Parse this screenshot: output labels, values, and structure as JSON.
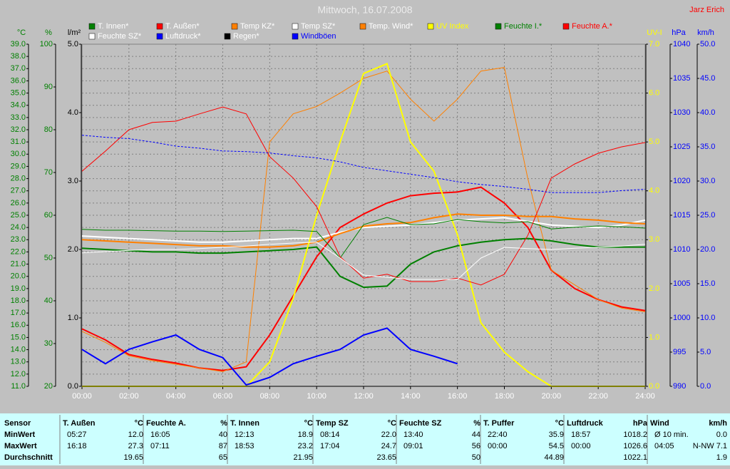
{
  "header": {
    "author": "Jarz Erich"
  },
  "chart_data": {
    "type": "line",
    "title": "Mittwoch, 16.07.2008",
    "x": [
      0,
      1,
      2,
      3,
      4,
      5,
      6,
      7,
      8,
      9,
      10,
      11,
      12,
      13,
      14,
      15,
      16,
      17,
      18,
      19,
      20,
      21,
      22,
      23,
      24
    ],
    "xlim": [
      0,
      24
    ],
    "xticks": [
      {
        "value": 0,
        "label": "00:00"
      },
      {
        "value": 2,
        "label": "02:00"
      },
      {
        "value": 4,
        "label": "04:00"
      },
      {
        "value": 6,
        "label": "06:00"
      },
      {
        "value": 8,
        "label": "08:00"
      },
      {
        "value": 10,
        "label": "10:00"
      },
      {
        "value": 12,
        "label": "12:00"
      },
      {
        "value": 14,
        "label": "14:00"
      },
      {
        "value": 16,
        "label": "16:00"
      },
      {
        "value": 18,
        "label": "18:00"
      },
      {
        "value": 20,
        "label": "20:00"
      },
      {
        "value": 22,
        "label": "22:00"
      },
      {
        "value": 24,
        "label": "24:00"
      }
    ],
    "grid": true,
    "ylabel": "°C",
    "ycolor": "#008000",
    "ylim": [
      11,
      39
    ],
    "yticks": [
      {
        "value": 11,
        "label": "11.0"
      },
      {
        "value": 12,
        "label": "12.0"
      },
      {
        "value": 13,
        "label": "13.0"
      },
      {
        "value": 14,
        "label": "14.0"
      },
      {
        "value": 15,
        "label": "15.0"
      },
      {
        "value": 16,
        "label": "16.0"
      },
      {
        "value": 17,
        "label": "17.0"
      },
      {
        "value": 18,
        "label": "18.0"
      },
      {
        "value": 19,
        "label": "19.0"
      },
      {
        "value": 20,
        "label": "20.0"
      },
      {
        "value": 21,
        "label": "21.0"
      },
      {
        "value": 22,
        "label": "22.0"
      },
      {
        "value": 23,
        "label": "23.0"
      },
      {
        "value": 24,
        "label": "24.0"
      },
      {
        "value": 25,
        "label": "25.0"
      },
      {
        "value": 26,
        "label": "26.0"
      },
      {
        "value": 27,
        "label": "27.0"
      },
      {
        "value": 28,
        "label": "28.0"
      },
      {
        "value": 29,
        "label": "29.0"
      },
      {
        "value": 30,
        "label": "30.0"
      },
      {
        "value": 31,
        "label": "31.0"
      },
      {
        "value": 32,
        "label": "32.0"
      },
      {
        "value": 33,
        "label": "33.0"
      },
      {
        "value": 34,
        "label": "34.0"
      },
      {
        "value": 35,
        "label": "35.0"
      },
      {
        "value": 36,
        "label": "36.0"
      },
      {
        "value": 37,
        "label": "37.0"
      },
      {
        "value": 38,
        "label": "38.0"
      },
      {
        "value": 39,
        "label": "39.0"
      }
    ],
    "y2label": "%",
    "y2color": "#008000",
    "y2lim": [
      20,
      100
    ],
    "y2ticks": [
      20,
      30,
      40,
      50,
      60,
      70,
      80,
      90,
      100
    ],
    "y3label": "l/m²",
    "y3color": "#000000",
    "y3lim": [
      0,
      5
    ],
    "y3ticks": [
      {
        "value": 0,
        "label": "0.0"
      },
      {
        "value": 1,
        "label": "1.0"
      },
      {
        "value": 2,
        "label": "2.0"
      },
      {
        "value": 3,
        "label": "3.0"
      },
      {
        "value": 4,
        "label": "4.0"
      },
      {
        "value": 5,
        "label": "5.0"
      }
    ],
    "y4label": "UV-I",
    "y4color": "#ffff00",
    "y4lim": [
      0,
      7
    ],
    "y4ticks": [
      {
        "value": 0,
        "label": "0.0"
      },
      {
        "value": 1,
        "label": "1.0"
      },
      {
        "value": 2,
        "label": "2.0"
      },
      {
        "value": 3,
        "label": "3.0"
      },
      {
        "value": 4,
        "label": "4.0"
      },
      {
        "value": 5,
        "label": "5.0"
      },
      {
        "value": 6,
        "label": "6.0"
      },
      {
        "value": 7,
        "label": "7.0"
      }
    ],
    "y5label": "hPa",
    "y5color": "#0000ff",
    "y5lim": [
      990,
      1040
    ],
    "y5ticks": [
      990,
      995,
      1000,
      1005,
      1010,
      1015,
      1020,
      1025,
      1030,
      1035,
      1040
    ],
    "y6label": "km/h",
    "y6color": "#0000ff",
    "y6lim": [
      0,
      50
    ],
    "y6ticks": [
      {
        "value": 0,
        "label": "0.0"
      },
      {
        "value": 5,
        "label": "5.0"
      },
      {
        "value": 10,
        "label": "10.0"
      },
      {
        "value": 15,
        "label": "15.0"
      },
      {
        "value": 20,
        "label": "20.0"
      },
      {
        "value": 25,
        "label": "25.0"
      },
      {
        "value": 30,
        "label": "30.0"
      },
      {
        "value": 35,
        "label": "35.0"
      },
      {
        "value": 40,
        "label": "40.0"
      },
      {
        "value": 45,
        "label": "45.0"
      },
      {
        "value": 50,
        "label": "50.0"
      }
    ],
    "series": [
      {
        "name": "T. Innen*",
        "color": "#008000",
        "label_color": "#ffffff",
        "axis": "y",
        "line_width": 2,
        "values": [
          22.3,
          22.2,
          22.1,
          22.0,
          22.0,
          21.9,
          21.9,
          22.0,
          22.1,
          22.2,
          22.4,
          20.0,
          19.1,
          19.2,
          21.0,
          22.0,
          22.5,
          22.8,
          23.0,
          23.1,
          22.9,
          22.6,
          22.4,
          22.4,
          22.4
        ]
      },
      {
        "name": "T. Außen*",
        "color": "#ff0000",
        "label_color": "#ffffff",
        "axis": "y",
        "line_width": 2,
        "values": [
          15.7,
          14.8,
          13.6,
          13.2,
          12.9,
          12.5,
          12.3,
          12.6,
          15.2,
          18.4,
          21.6,
          24.0,
          25.1,
          26.0,
          26.6,
          26.8,
          26.9,
          27.3,
          26.0,
          24.0,
          20.5,
          19.0,
          18.1,
          17.5,
          17.2
        ]
      },
      {
        "name": "Temp KZ*",
        "color": "#ff8000",
        "label_color": "#ffffff",
        "axis": "y",
        "line_width": 1,
        "values": [
          15.5,
          14.6,
          13.5,
          13.1,
          12.8,
          12.5,
          12.2,
          13.0,
          31.0,
          33.3,
          33.9,
          35.0,
          36.2,
          36.8,
          34.5,
          32.7,
          34.5,
          36.8,
          37.1,
          28.0,
          20.5,
          19.3,
          18.1,
          17.4,
          17.1
        ]
      },
      {
        "name": "Temp SZ*",
        "color": "#ffffff",
        "label_color": "#ffffff",
        "axis": "y",
        "line_width": 2,
        "values": [
          23.3,
          23.2,
          23.1,
          23.0,
          22.9,
          22.8,
          22.8,
          22.9,
          23.0,
          23.1,
          23.1,
          23.6,
          24.0,
          24.1,
          24.2,
          24.4,
          24.6,
          24.7,
          24.8,
          24.5,
          24.2,
          24.1,
          24.0,
          24.2,
          24.6
        ]
      },
      {
        "name": "Temp. Wind*",
        "color": "#ff8000",
        "label_color": "#ffffff",
        "axis": "y",
        "line_width": 2,
        "values": [
          23.0,
          22.9,
          22.8,
          22.7,
          22.6,
          22.5,
          22.5,
          22.4,
          22.4,
          22.5,
          22.8,
          23.5,
          24.1,
          24.3,
          24.4,
          24.8,
          25.1,
          25.0,
          25.0,
          24.9,
          24.9,
          24.7,
          24.6,
          24.4,
          24.3
        ]
      },
      {
        "name": "UV Index",
        "color": "#ffff00",
        "label_color": "#ffff00",
        "axis": "y4",
        "line_width": 2,
        "values": [
          0,
          0,
          0,
          0,
          0,
          0,
          0,
          0,
          0.5,
          1.8,
          3.5,
          5.0,
          6.4,
          6.6,
          5.0,
          4.4,
          3.1,
          1.3,
          0.7,
          0.3,
          0,
          0,
          0,
          0,
          0
        ]
      },
      {
        "name": "Feuchte I.*",
        "color": "#008000",
        "label_color": "#008000",
        "axis": "y2",
        "line_width": 1,
        "values": [
          56.7,
          56.5,
          56.5,
          56.4,
          56.3,
          56.3,
          56.2,
          56.3,
          56.4,
          56.5,
          56.2,
          50.0,
          57.8,
          59.5,
          57.8,
          58.0,
          59.0,
          58.5,
          58.2,
          58.5,
          56.8,
          57.2,
          57.5,
          57.3,
          57.0
        ]
      },
      {
        "name": "Feuchte A.*",
        "color": "#ff0000",
        "label_color": "#ff0000",
        "axis": "y2",
        "line_width": 1,
        "values": [
          70.3,
          75.0,
          80.0,
          81.7,
          82.0,
          83.7,
          85.3,
          83.7,
          73.7,
          68.7,
          62.0,
          50.3,
          45.3,
          46.2,
          44.5,
          44.5,
          45.3,
          43.7,
          46.2,
          55.3,
          68.7,
          72.0,
          74.5,
          76.0,
          77.0
        ]
      },
      {
        "name": "Feuchte SZ*",
        "color": "#ffffff",
        "label_color": "#ffffff",
        "axis": "y2",
        "line_width": 1,
        "values": [
          51.2,
          51.5,
          51.8,
          52.0,
          52.0,
          52.2,
          52.5,
          52.8,
          53.2,
          53.5,
          53.7,
          50.0,
          46.0,
          45.5,
          45.0,
          45.0,
          45.0,
          50.0,
          52.5,
          52.2,
          52.0,
          52.3,
          52.5,
          52.8,
          53.2
        ]
      },
      {
        "name": "Luftdruck*",
        "color": "#0000ff",
        "label_color": "#ffffff",
        "axis": "y5",
        "line_width": 1,
        "dashed": true,
        "values": [
          1026.7,
          1026.4,
          1026.2,
          1025.7,
          1025.1,
          1024.8,
          1024.4,
          1024.3,
          1024.1,
          1023.7,
          1023.4,
          1022.8,
          1022.0,
          1021.5,
          1021.0,
          1020.5,
          1019.9,
          1019.5,
          1019.2,
          1018.8,
          1018.3,
          1018.3,
          1018.3,
          1018.6,
          1018.8
        ]
      },
      {
        "name": "Regen*",
        "color": "#000000",
        "label_color": "#ffffff",
        "axis": "y3",
        "line_width": 1,
        "values": [
          0,
          0,
          0,
          0,
          0,
          0,
          0,
          0,
          0,
          0,
          0,
          0,
          0,
          0,
          0,
          0,
          0,
          0,
          0,
          0,
          0,
          0,
          0,
          0,
          0
        ]
      },
      {
        "name": "Windböen",
        "color": "#0000ff",
        "label_color": "#0000ff",
        "axis": "y6",
        "line_width": 2,
        "values": [
          5.4,
          3.3,
          5.4,
          6.5,
          7.5,
          5.4,
          4.2,
          0.2,
          1.3,
          3.3,
          4.4,
          5.4,
          7.5,
          8.5,
          5.4,
          4.4,
          3.3,
          null,
          null,
          null,
          null,
          null,
          null,
          null,
          null
        ]
      }
    ]
  },
  "stats": {
    "row_labels": [
      "Sensor",
      "MinWert",
      "MaxWert",
      "Durchschnitt"
    ],
    "columns": [
      {
        "name": "T. Außen",
        "unit": "°C",
        "min": [
          "05:27",
          "12.0"
        ],
        "max": [
          "16:18",
          "27.3"
        ],
        "avg": "19.65"
      },
      {
        "name": "Feuchte A.",
        "unit": "%",
        "min": [
          "16:05",
          "40"
        ],
        "max": [
          "07:11",
          "87"
        ],
        "avg": "65"
      },
      {
        "name": "T. Innen",
        "unit": "°C",
        "min": [
          "12:13",
          "18.9"
        ],
        "max": [
          "18:53",
          "23.2"
        ],
        "avg": "21.95"
      },
      {
        "name": "Temp SZ",
        "unit": "°C",
        "min": [
          "08:14",
          "22.0"
        ],
        "max": [
          "17:04",
          "24.7"
        ],
        "avg": "23.65"
      },
      {
        "name": "Feuchte SZ",
        "unit": "%",
        "min": [
          "13:40",
          "44"
        ],
        "max": [
          "09:01",
          "56"
        ],
        "avg": "50"
      },
      {
        "name": "T. Puffer",
        "unit": "°C",
        "min": [
          "22:40",
          "35.9"
        ],
        "max": [
          "00:00",
          "54.5"
        ],
        "avg": "44.89"
      },
      {
        "name": "Luftdruck",
        "unit": "hPa",
        "min": [
          "18:57",
          "1018.2"
        ],
        "max": [
          "00:00",
          "1026.6"
        ],
        "avg": "1022.1"
      },
      {
        "name": "Wind",
        "unit": "km/h",
        "min": [
          "Ø 10 min.",
          "0.0"
        ],
        "max": [
          "04:05",
          "N-NW 7.1"
        ],
        "avg": "1.9"
      }
    ]
  }
}
